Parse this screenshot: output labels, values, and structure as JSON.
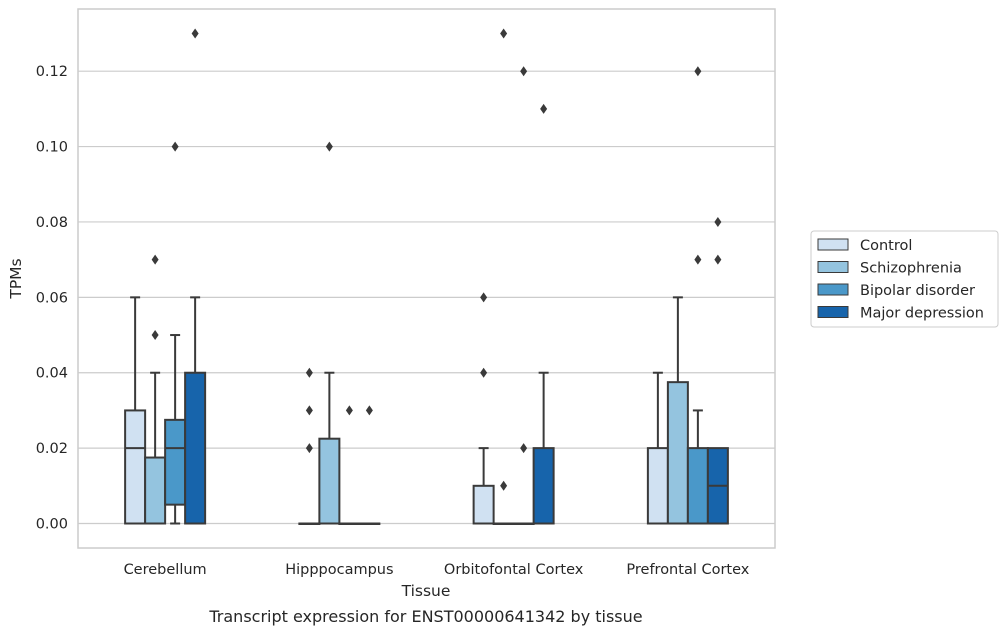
{
  "caption": "Transcript expression for ENST00000641342 by tissue",
  "chart_data": {
    "type": "box",
    "xlabel": "Tissue",
    "ylabel": "TPMs",
    "ylim": [
      -0.0065,
      0.1365
    ],
    "yticks": [
      "0.00",
      "0.02",
      "0.04",
      "0.06",
      "0.08",
      "0.10",
      "0.12"
    ],
    "ytick_values": [
      0,
      0.02,
      0.04,
      0.06,
      0.08,
      0.1,
      0.12
    ],
    "grid": true,
    "legend_position": "right",
    "categories": [
      "Cerebellum",
      "Hipppocampus",
      "Orbitofontal Cortex",
      "Prefrontal Cortex"
    ],
    "series": [
      {
        "name": "Control",
        "color": "#d0e1f2",
        "boxes": [
          {
            "min": 0,
            "q1": 0,
            "median": 0.02,
            "q3": 0.03,
            "max": 0.06,
            "outliers": []
          },
          {
            "min": 0,
            "q1": 0,
            "median": 0,
            "q3": 0,
            "max": 0,
            "outliers": [
              0.02,
              0.03,
              0.04
            ]
          },
          {
            "min": 0,
            "q1": 0,
            "median": 0,
            "q3": 0.01,
            "max": 0.02,
            "outliers": [
              0.04,
              0.06
            ]
          },
          {
            "min": 0,
            "q1": 0,
            "median": 0,
            "q3": 0.02,
            "max": 0.04,
            "outliers": []
          }
        ]
      },
      {
        "name": "Schizophrenia",
        "color": "#94c4df",
        "boxes": [
          {
            "min": 0,
            "q1": 0,
            "median": 0,
            "q3": 0.0175,
            "max": 0.04,
            "outliers": [
              0.05,
              0.07
            ]
          },
          {
            "min": 0,
            "q1": 0,
            "median": 0,
            "q3": 0.0225,
            "max": 0.04,
            "outliers": [
              0.1
            ]
          },
          {
            "min": 0,
            "q1": 0,
            "median": 0,
            "q3": 0,
            "max": 0,
            "outliers": [
              0.01,
              0.13
            ]
          },
          {
            "min": 0,
            "q1": 0,
            "median": 0,
            "q3": 0.0375,
            "max": 0.06,
            "outliers": []
          }
        ]
      },
      {
        "name": "Bipolar disorder",
        "color": "#4a98c9",
        "boxes": [
          {
            "min": 0,
            "q1": 0.005,
            "median": 0.02,
            "q3": 0.0275,
            "max": 0.05,
            "outliers": [
              0.1
            ]
          },
          {
            "min": 0,
            "q1": 0,
            "median": 0,
            "q3": 0,
            "max": 0,
            "outliers": [
              0.03
            ]
          },
          {
            "min": 0,
            "q1": 0,
            "median": 0,
            "q3": 0,
            "max": 0,
            "outliers": [
              0.02,
              0.12
            ]
          },
          {
            "min": 0,
            "q1": 0,
            "median": 0,
            "q3": 0.02,
            "max": 0.03,
            "outliers": [
              0.07,
              0.12
            ]
          }
        ]
      },
      {
        "name": "Major depression",
        "color": "#1764ab",
        "boxes": [
          {
            "min": 0,
            "q1": 0,
            "median": 0,
            "q3": 0.04,
            "max": 0.06,
            "outliers": [
              0.13
            ]
          },
          {
            "min": 0,
            "q1": 0,
            "median": 0,
            "q3": 0,
            "max": 0,
            "outliers": [
              0.03
            ]
          },
          {
            "min": 0,
            "q1": 0,
            "median": 0,
            "q3": 0.02,
            "max": 0.04,
            "outliers": [
              0.11
            ]
          },
          {
            "min": 0,
            "q1": 0,
            "median": 0.01,
            "q3": 0.02,
            "max": 0.02,
            "outliers": [
              0.07,
              0.08
            ]
          }
        ]
      }
    ]
  }
}
